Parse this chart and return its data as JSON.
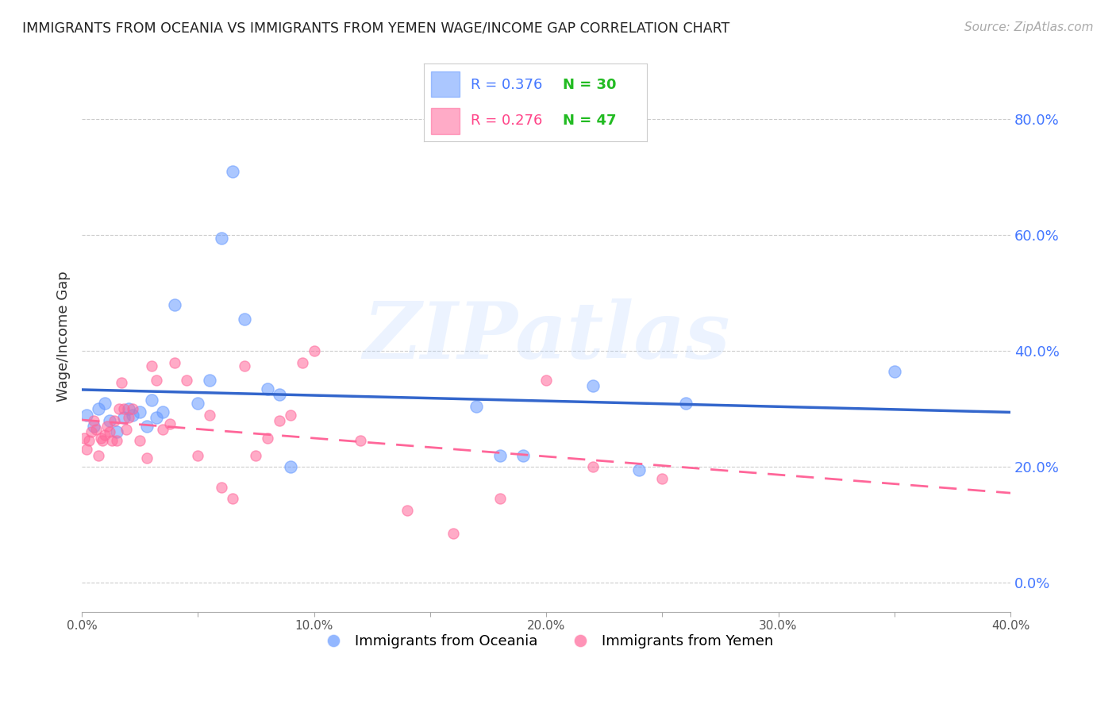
{
  "title": "IMMIGRANTS FROM OCEANIA VS IMMIGRANTS FROM YEMEN WAGE/INCOME GAP CORRELATION CHART",
  "source": "Source: ZipAtlas.com",
  "ylabel": "Wage/Income Gap",
  "xlim": [
    0.0,
    0.4
  ],
  "ylim": [
    -0.05,
    0.9
  ],
  "right_yticks": [
    0.0,
    0.2,
    0.4,
    0.6,
    0.8
  ],
  "right_yticklabels": [
    "0.0%",
    "20.0%",
    "40.0%",
    "60.0%",
    "80.0%"
  ],
  "xticks": [
    0.0,
    0.05,
    0.1,
    0.15,
    0.2,
    0.25,
    0.3,
    0.35,
    0.4
  ],
  "xticklabels": [
    "0.0%",
    "",
    "10.0%",
    "",
    "20.0%",
    "",
    "30.0%",
    "",
    "40.0%"
  ],
  "grid_color": "#cccccc",
  "background_color": "#ffffff",
  "oceania_color": "#6699ff",
  "yemen_color": "#ff6699",
  "oceania_label": "Immigrants from Oceania",
  "yemen_label": "Immigrants from Yemen",
  "R_oceania": 0.376,
  "N_oceania": 30,
  "R_yemen": 0.276,
  "N_yemen": 47,
  "oceania_x": [
    0.002,
    0.005,
    0.007,
    0.01,
    0.012,
    0.015,
    0.018,
    0.02,
    0.022,
    0.025,
    0.028,
    0.03,
    0.032,
    0.035,
    0.04,
    0.05,
    0.055,
    0.06,
    0.065,
    0.07,
    0.08,
    0.085,
    0.09,
    0.17,
    0.18,
    0.19,
    0.22,
    0.24,
    0.26,
    0.35
  ],
  "oceania_y": [
    0.29,
    0.27,
    0.3,
    0.31,
    0.28,
    0.26,
    0.285,
    0.3,
    0.29,
    0.295,
    0.27,
    0.315,
    0.285,
    0.295,
    0.48,
    0.31,
    0.35,
    0.595,
    0.71,
    0.455,
    0.335,
    0.325,
    0.2,
    0.305,
    0.22,
    0.22,
    0.34,
    0.195,
    0.31,
    0.365
  ],
  "yemen_x": [
    0.001,
    0.002,
    0.003,
    0.004,
    0.005,
    0.006,
    0.007,
    0.008,
    0.009,
    0.01,
    0.011,
    0.012,
    0.013,
    0.014,
    0.015,
    0.016,
    0.017,
    0.018,
    0.019,
    0.02,
    0.022,
    0.025,
    0.028,
    0.03,
    0.032,
    0.035,
    0.038,
    0.04,
    0.045,
    0.05,
    0.055,
    0.06,
    0.065,
    0.07,
    0.075,
    0.08,
    0.085,
    0.09,
    0.095,
    0.1,
    0.12,
    0.14,
    0.16,
    0.18,
    0.2,
    0.22,
    0.25
  ],
  "yemen_y": [
    0.25,
    0.23,
    0.245,
    0.26,
    0.28,
    0.265,
    0.22,
    0.25,
    0.245,
    0.255,
    0.27,
    0.26,
    0.245,
    0.28,
    0.245,
    0.3,
    0.345,
    0.3,
    0.265,
    0.285,
    0.3,
    0.245,
    0.215,
    0.375,
    0.35,
    0.265,
    0.275,
    0.38,
    0.35,
    0.22,
    0.29,
    0.165,
    0.145,
    0.375,
    0.22,
    0.25,
    0.28,
    0.29,
    0.38,
    0.4,
    0.245,
    0.125,
    0.085,
    0.145,
    0.35,
    0.2,
    0.18
  ]
}
